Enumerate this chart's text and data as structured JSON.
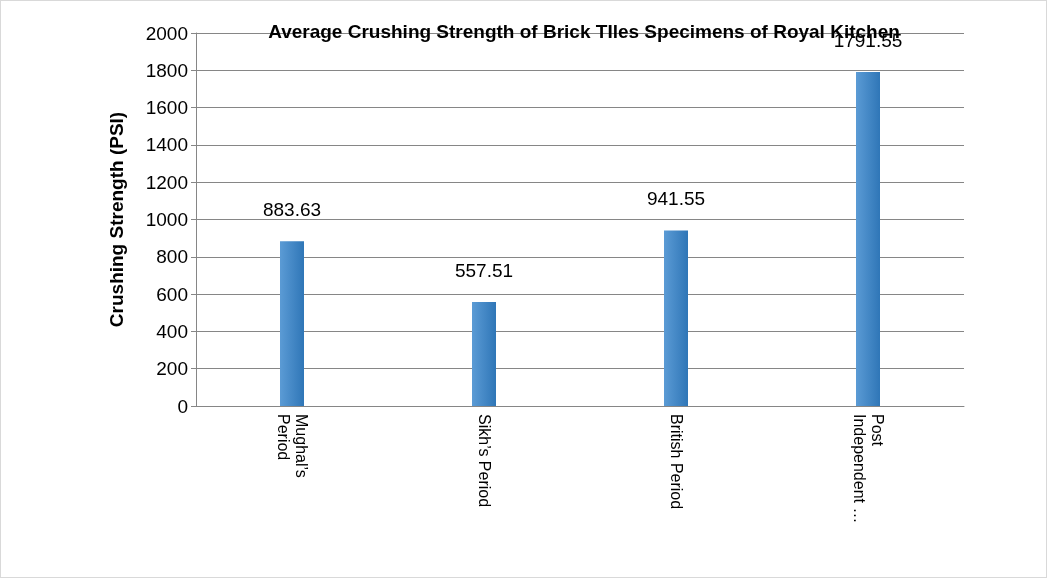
{
  "chart_data": {
    "type": "bar",
    "title": "Average Crushing Strength of Brick TIles Specimens of Royal Kitchen",
    "ylabel": "Crushing Strength (PSI)",
    "categories": [
      "Mughal’s Period",
      "Sikh’s Period",
      "British Period",
      "Post Independent …"
    ],
    "values": [
      883.63,
      557.51,
      941.55,
      1791.55
    ],
    "color": "#5b9bd5",
    "ylim": [
      0,
      2000
    ],
    "yticks": [
      0,
      200,
      400,
      600,
      800,
      1000,
      1200,
      1400,
      1600,
      1800,
      2000
    ],
    "grid": "y",
    "data_labels": true
  }
}
